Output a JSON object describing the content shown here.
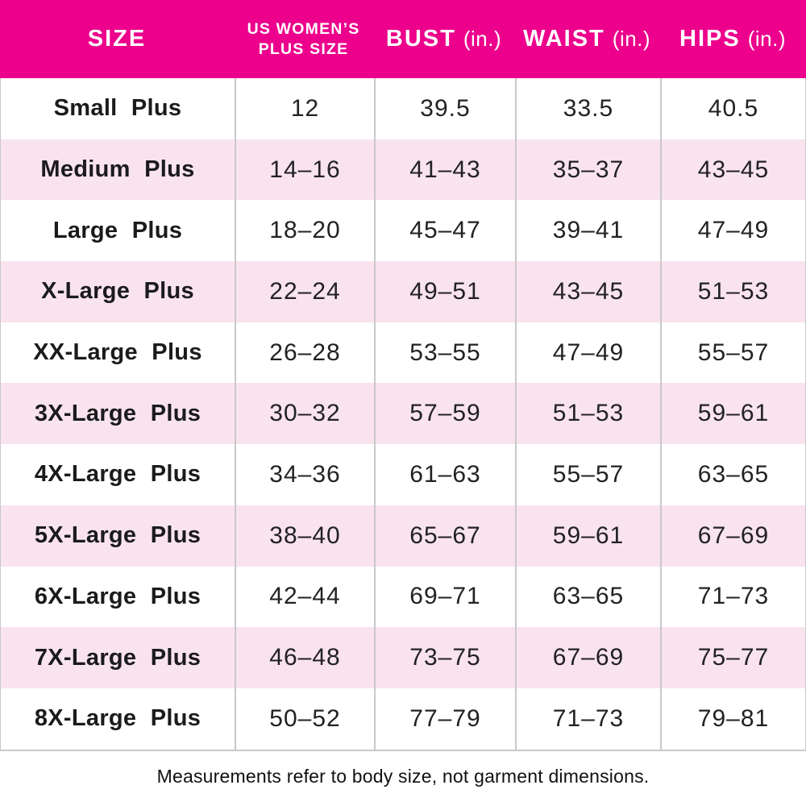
{
  "header": {
    "size": "SIZE",
    "plus_size_line1": "US WOMEN’S",
    "plus_size_line2": "PLUS SIZE",
    "bust": "BUST",
    "bust_unit": "(in.)",
    "waist": "WAIST",
    "waist_unit": "(in.)",
    "hips": "HIPS",
    "hips_unit": "(in.)"
  },
  "footnote": "Measurements refer to body size, not garment dimensions.",
  "colors": {
    "header_bg": "#EC008C",
    "header_text": "#FFFFFF",
    "row_bg": "#FFFFFF",
    "row_alt_bg": "#F9E3EF",
    "grid_line": "#C9C9C9",
    "body_text": "#1B1B1B"
  },
  "chart_data": {
    "type": "table",
    "columns": [
      "SIZE",
      "US WOMEN’S PLUS SIZE",
      "BUST (in.)",
      "WAIST (in.)",
      "HIPS (in.)"
    ],
    "rows": [
      [
        "Small Plus",
        "12",
        "39.5",
        "33.5",
        "40.5"
      ],
      [
        "Medium Plus",
        "14–16",
        "41–43",
        "35–37",
        "43–45"
      ],
      [
        "Large Plus",
        "18–20",
        "45–47",
        "39–41",
        "47–49"
      ],
      [
        "X-Large Plus",
        "22–24",
        "49–51",
        "43–45",
        "51–53"
      ],
      [
        "XX-Large Plus",
        "26–28",
        "53–55",
        "47–49",
        "55–57"
      ],
      [
        "3X-Large Plus",
        "30–32",
        "57–59",
        "51–53",
        "59–61"
      ],
      [
        "4X-Large Plus",
        "34–36",
        "61–63",
        "55–57",
        "63–65"
      ],
      [
        "5X-Large Plus",
        "38–40",
        "65–67",
        "59–61",
        "67–69"
      ],
      [
        "6X-Large Plus",
        "42–44",
        "69–71",
        "63–65",
        "71–73"
      ],
      [
        "7X-Large Plus",
        "46–48",
        "73–75",
        "67–69",
        "75–77"
      ],
      [
        "8X-Large Plus",
        "50–52",
        "77–79",
        "71–73",
        "79–81"
      ]
    ]
  }
}
